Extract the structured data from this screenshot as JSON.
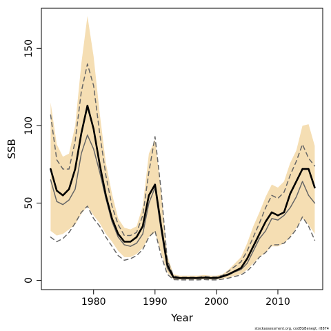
{
  "chart_data": {
    "type": "line",
    "xlabel": "Year",
    "ylabel": "SSB",
    "credit": "stockassessment.org, codEGBenegt, r8874",
    "xlim": [
      1971.5,
      2017.3
    ],
    "ylim": [
      -6,
      176
    ],
    "x_ticks": [
      1980,
      1990,
      2000,
      2010
    ],
    "y_ticks": [
      0,
      50,
      100,
      150
    ],
    "colors": {
      "band": "#f5deb3",
      "main": "#000000",
      "reference": "#666666"
    },
    "x": [
      1973,
      1974,
      1975,
      1976,
      1977,
      1978,
      1979,
      1980,
      1981,
      1982,
      1983,
      1984,
      1985,
      1986,
      1987,
      1988,
      1989,
      1990,
      1991,
      1992,
      1993,
      1994,
      1995,
      1996,
      1997,
      1998,
      1999,
      2000,
      2001,
      2002,
      2003,
      2004,
      2005,
      2006,
      2007,
      2008,
      2009,
      2010,
      2011,
      2012,
      2013,
      2014,
      2015,
      2016
    ],
    "series": [
      {
        "role": "estimate",
        "values": [
          72,
          58,
          55,
          59,
          72,
          95,
          113,
          98,
          75,
          55,
          40,
          30,
          25,
          25,
          28,
          35,
          55,
          62,
          35,
          10,
          2,
          1.5,
          1.5,
          1.5,
          1.5,
          1.8,
          1.5,
          1.5,
          2.5,
          4,
          6,
          8,
          14,
          22,
          30,
          38,
          44,
          42,
          44,
          56,
          64,
          72,
          72,
          60
        ]
      },
      {
        "role": "estimate-lower",
        "values": [
          32,
          29,
          30,
          33,
          36,
          43,
          48,
          42,
          37,
          30,
          25,
          19,
          15,
          15,
          17,
          21,
          28,
          31,
          18,
          5,
          0.8,
          0.5,
          0.5,
          0.5,
          0.5,
          0.7,
          0.5,
          0.5,
          1,
          1.8,
          3,
          4,
          7,
          11,
          15,
          18,
          22,
          22,
          24,
          28,
          34,
          40,
          36,
          30
        ]
      },
      {
        "role": "estimate-upper",
        "values": [
          115,
          88,
          80,
          82,
          100,
          140,
          171,
          145,
          108,
          76,
          56,
          40,
          34,
          33,
          35,
          48,
          82,
          91,
          57,
          16,
          4,
          3,
          3,
          3,
          3,
          3.5,
          3,
          3,
          4,
          7,
          11,
          15,
          24,
          35,
          44,
          54,
          62,
          60,
          64,
          76,
          84,
          100,
          101,
          87
        ]
      },
      {
        "role": "reference-dashed-upper",
        "values": [
          107,
          78,
          72,
          72,
          90,
          122,
          140,
          126,
          95,
          68,
          48,
          36,
          29,
          29,
          31,
          42,
          70,
          93,
          58,
          13,
          3,
          2,
          2,
          2,
          2,
          2.5,
          2.2,
          2.2,
          3.2,
          6,
          9,
          12,
          19,
          28,
          37,
          47,
          55,
          53,
          57,
          68,
          77,
          88,
          79,
          74
        ]
      },
      {
        "role": "reference-dashed-lower",
        "values": [
          28,
          25,
          27,
          31,
          37,
          44,
          48,
          40,
          35,
          28,
          22,
          16,
          13,
          14,
          16,
          20,
          28,
          32,
          16,
          4,
          0.5,
          0.3,
          0.3,
          0.3,
          0.3,
          0.5,
          0.3,
          0.3,
          0.8,
          1.5,
          2.5,
          3.5,
          6,
          10,
          15,
          18,
          23,
          23,
          24,
          28,
          33,
          41,
          35,
          26
        ]
      },
      {
        "role": "reference-solid",
        "values": [
          65,
          51,
          49,
          52,
          59,
          82,
          94,
          85,
          70,
          53,
          38,
          28,
          23,
          22,
          24,
          30,
          50,
          60,
          32,
          8,
          1.6,
          1.2,
          1.2,
          1.2,
          1.2,
          1.5,
          1.2,
          1.2,
          2.2,
          3.5,
          5.5,
          7,
          11,
          19,
          27,
          32,
          40,
          39,
          42,
          47,
          54,
          64,
          55,
          50
        ]
      }
    ]
  }
}
